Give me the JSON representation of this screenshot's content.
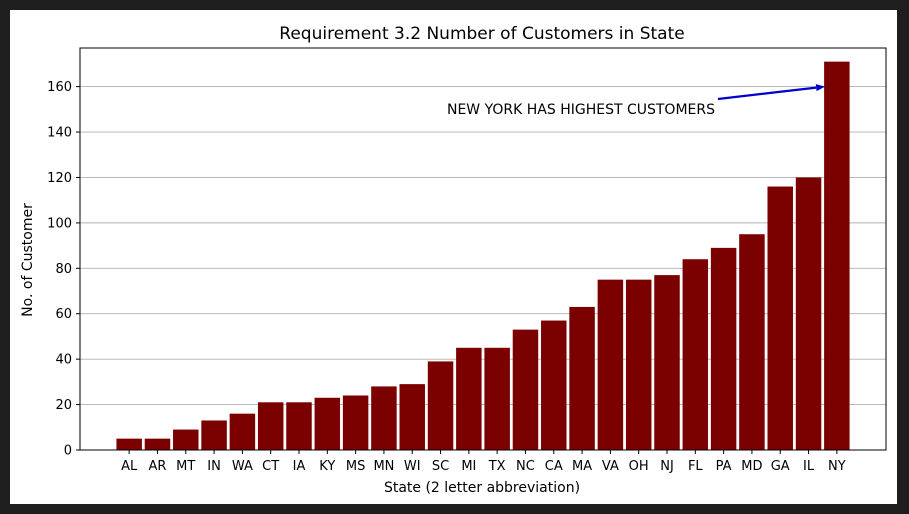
{
  "chart_data": {
    "type": "bar",
    "title": "Requirement 3.2 Number of Customers in State",
    "xlabel": "State (2 letter abbreviation)",
    "ylabel": "No. of Customer",
    "categories": [
      "AL",
      "AR",
      "MT",
      "IN",
      "WA",
      "CT",
      "IA",
      "KY",
      "MS",
      "MN",
      "WI",
      "SC",
      "MI",
      "TX",
      "NC",
      "CA",
      "MA",
      "VA",
      "OH",
      "NJ",
      "FL",
      "PA",
      "MD",
      "GA",
      "IL",
      "NY"
    ],
    "values": [
      5,
      5,
      9,
      13,
      16,
      21,
      21,
      23,
      24,
      28,
      29,
      39,
      45,
      45,
      53,
      57,
      63,
      75,
      75,
      77,
      84,
      89,
      95,
      116,
      120,
      171
    ],
    "ylim": [
      0,
      177
    ],
    "yticks": [
      0,
      20,
      40,
      60,
      80,
      100,
      120,
      140,
      160
    ],
    "grid": "horizontal",
    "bar_color": "#7b0000",
    "annotation": {
      "text": "NEW YORK HAS HIGHEST CUSTOMERS",
      "target_category": "NY",
      "target_value": 160,
      "arrow_color": "#0000cc"
    }
  }
}
